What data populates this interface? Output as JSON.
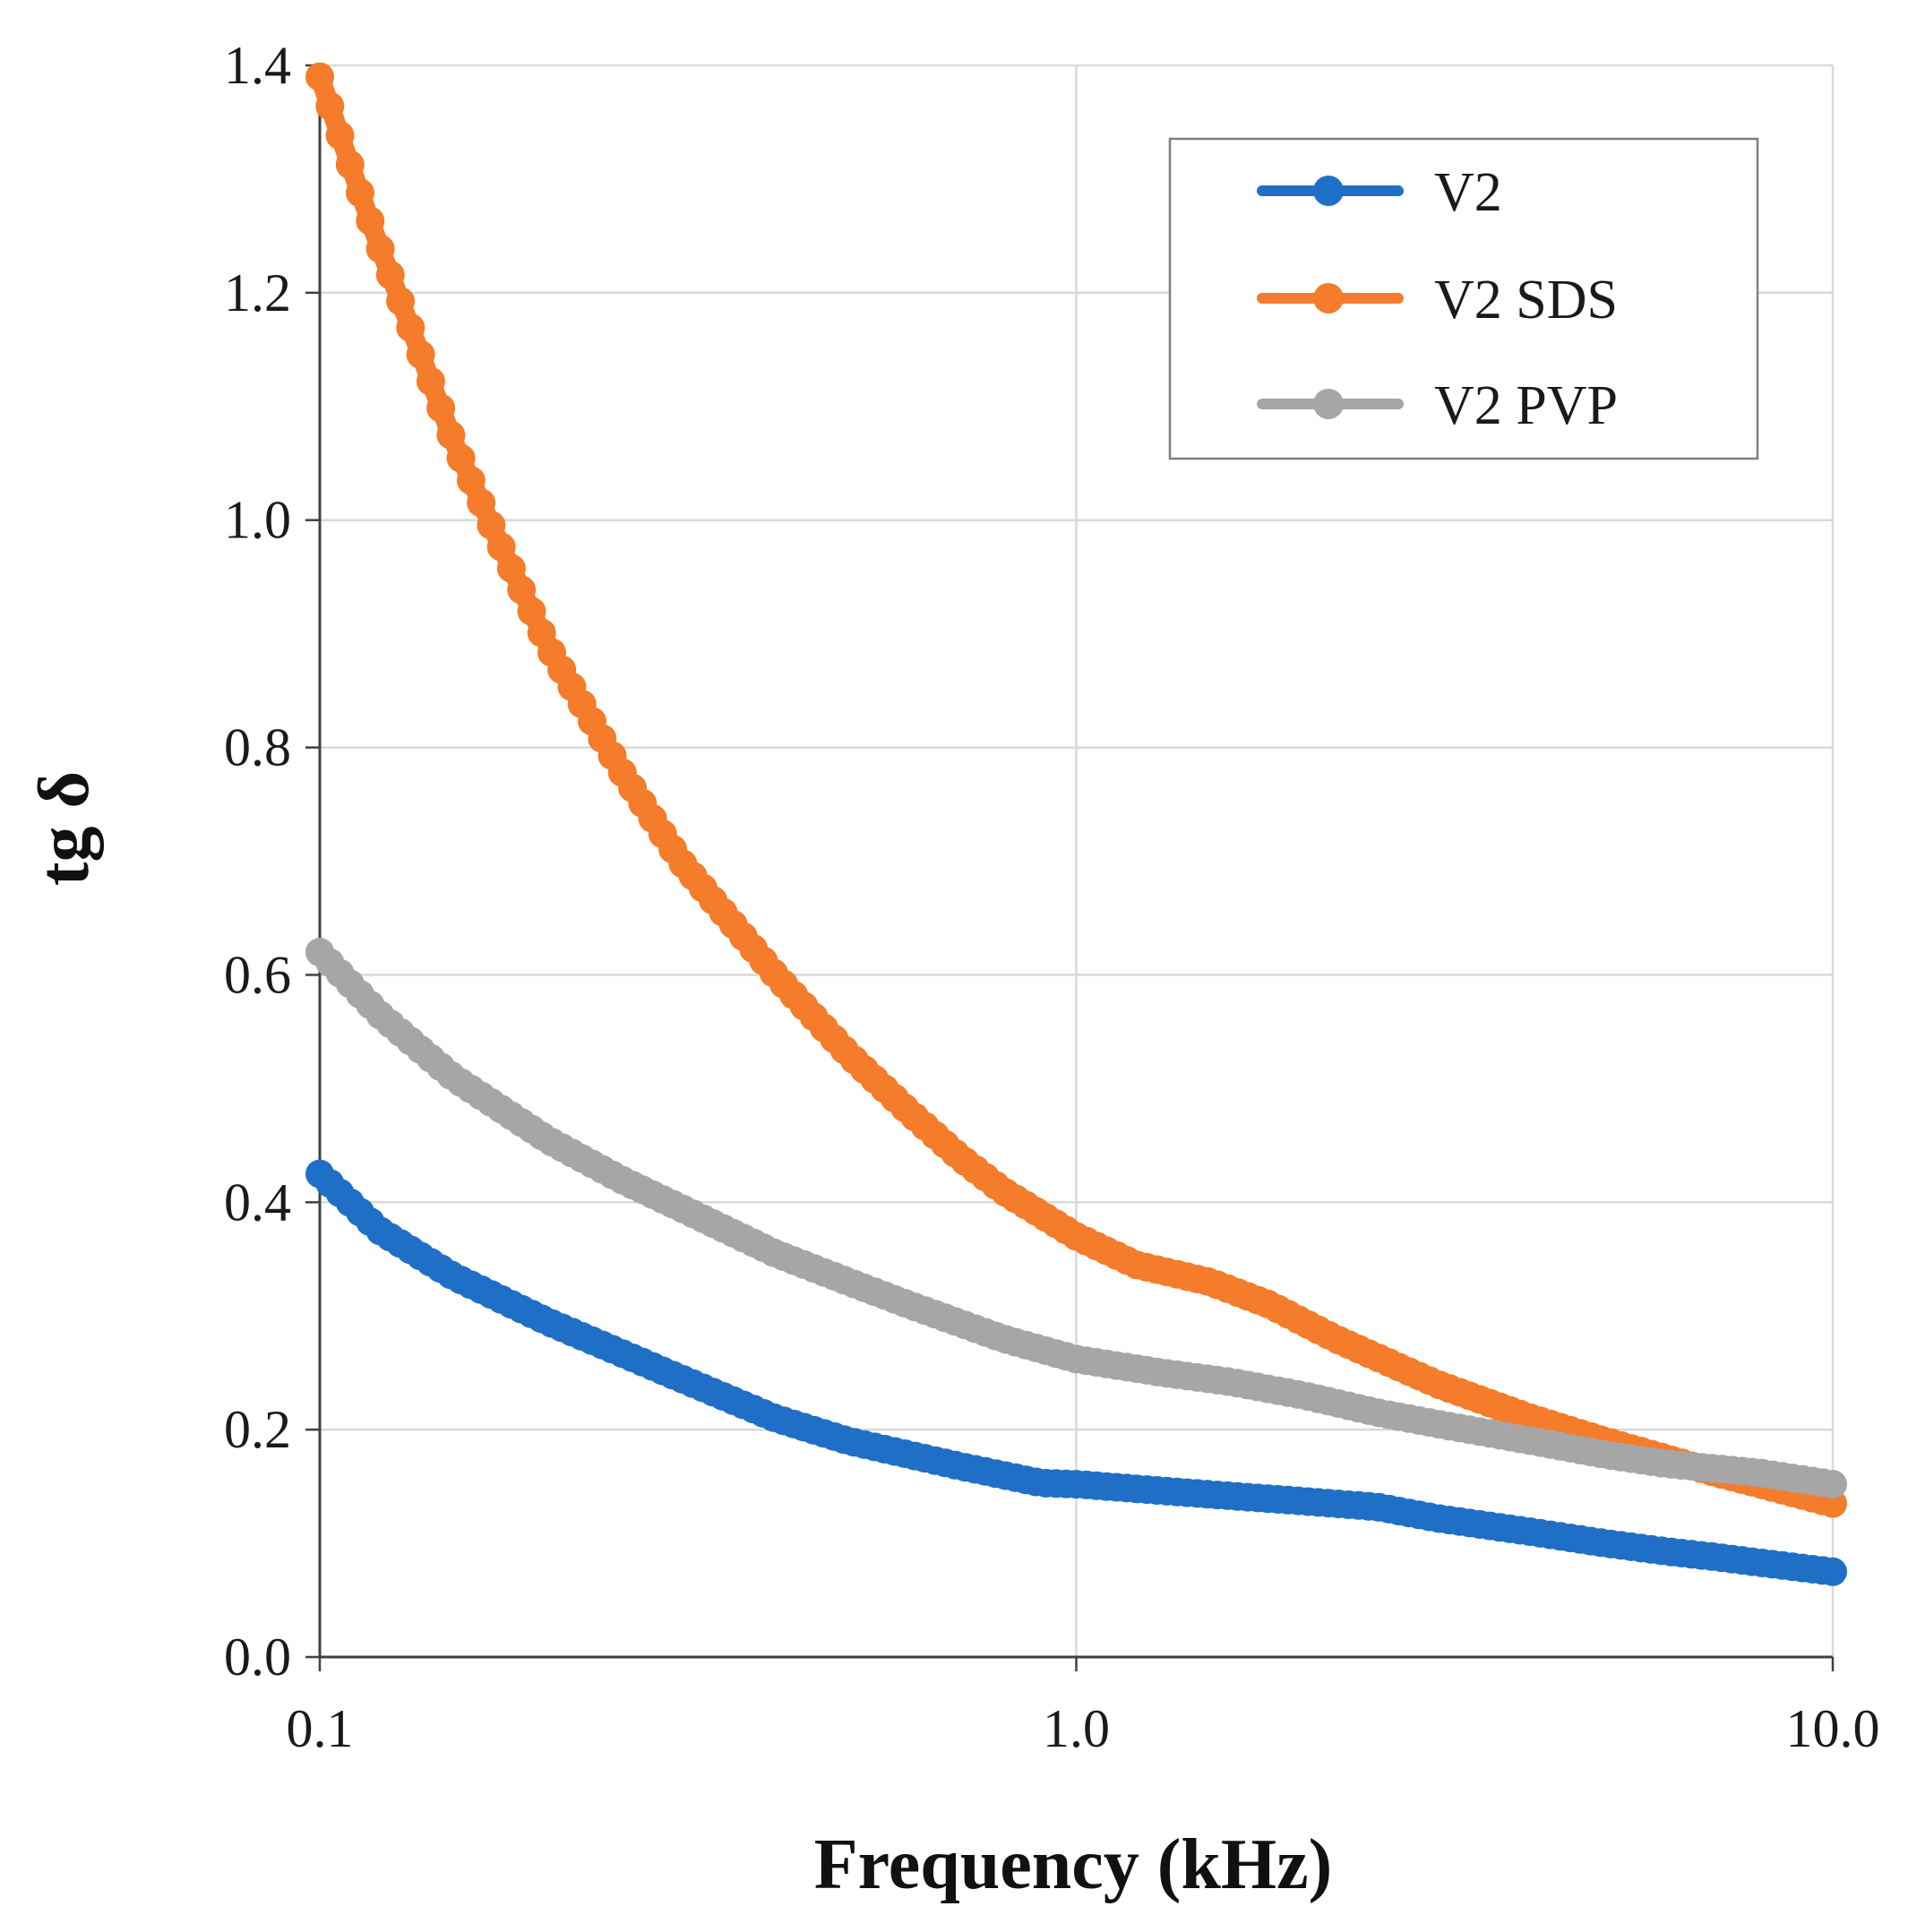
{
  "chart_data": {
    "type": "scatter",
    "title": "",
    "xlabel": "Frequency (kHz)",
    "ylabel": "tg δ",
    "xscale": "log",
    "xlim": [
      0.1,
      10.0
    ],
    "ylim": [
      0.0,
      1.4
    ],
    "xticks": [
      "0.1",
      "1.0",
      "10.0"
    ],
    "yticks": [
      "0.0",
      "0.2",
      "0.4",
      "0.6",
      "0.8",
      "1.0",
      "1.2",
      "1.4"
    ],
    "grid": true,
    "legend_position": "top-right",
    "series": [
      {
        "name": "V2",
        "color": "#1f6fc6",
        "points": [
          [
            0.1,
            0.425
          ],
          [
            0.12,
            0.375
          ],
          [
            0.15,
            0.335
          ],
          [
            0.2,
            0.295
          ],
          [
            0.3,
            0.245
          ],
          [
            0.4,
            0.21
          ],
          [
            0.5,
            0.19
          ],
          [
            0.7,
            0.168
          ],
          [
            0.9,
            0.153
          ],
          [
            1.0,
            0.152
          ],
          [
            1.5,
            0.143
          ],
          [
            2.0,
            0.137
          ],
          [
            2.5,
            0.132
          ],
          [
            3.0,
            0.122
          ],
          [
            4.0,
            0.11
          ],
          [
            5.0,
            0.1
          ],
          [
            6.0,
            0.093
          ],
          [
            7.0,
            0.088
          ],
          [
            8.0,
            0.083
          ],
          [
            10.0,
            0.075
          ]
        ]
      },
      {
        "name": "V2 SDS",
        "color": "#f47c2a",
        "points": [
          [
            0.1,
            1.39
          ],
          [
            0.11,
            1.31
          ],
          [
            0.12,
            1.24
          ],
          [
            0.13,
            1.18
          ],
          [
            0.15,
            1.07
          ],
          [
            0.17,
            0.99
          ],
          [
            0.2,
            0.89
          ],
          [
            0.25,
            0.78
          ],
          [
            0.3,
            0.7
          ],
          [
            0.4,
            0.6
          ],
          [
            0.5,
            0.53
          ],
          [
            0.6,
            0.48
          ],
          [
            0.7,
            0.44
          ],
          [
            0.8,
            0.41
          ],
          [
            1.0,
            0.37
          ],
          [
            1.2,
            0.345
          ],
          [
            1.5,
            0.33
          ],
          [
            1.8,
            0.31
          ],
          [
            2.2,
            0.28
          ],
          [
            3.0,
            0.24
          ],
          [
            4.0,
            0.21
          ],
          [
            5.0,
            0.19
          ],
          [
            6.0,
            0.175
          ],
          [
            7.0,
            0.162
          ],
          [
            8.0,
            0.152
          ],
          [
            10.0,
            0.135
          ]
        ]
      },
      {
        "name": "V2 PVP",
        "color": "#a6a6a6",
        "points": [
          [
            0.1,
            0.62
          ],
          [
            0.12,
            0.565
          ],
          [
            0.15,
            0.51
          ],
          [
            0.2,
            0.455
          ],
          [
            0.25,
            0.42
          ],
          [
            0.3,
            0.395
          ],
          [
            0.4,
            0.355
          ],
          [
            0.5,
            0.33
          ],
          [
            0.6,
            0.31
          ],
          [
            0.8,
            0.28
          ],
          [
            1.0,
            0.262
          ],
          [
            1.3,
            0.25
          ],
          [
            1.6,
            0.242
          ],
          [
            2.0,
            0.23
          ],
          [
            2.5,
            0.215
          ],
          [
            3.0,
            0.205
          ],
          [
            4.0,
            0.19
          ],
          [
            5.0,
            0.178
          ],
          [
            6.0,
            0.17
          ],
          [
            8.0,
            0.162
          ],
          [
            10.0,
            0.152
          ]
        ]
      }
    ]
  }
}
